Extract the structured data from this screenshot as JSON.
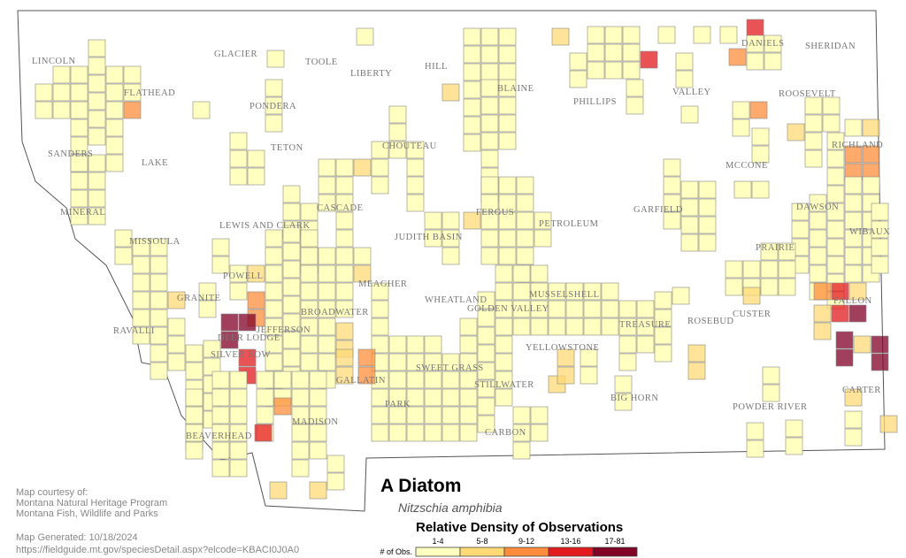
{
  "map": {
    "title": "A Diatom",
    "subtitle": "Nitzschia amphibia",
    "legend": {
      "title": "Relative Density of Observations",
      "axis_label": "# of Obs.",
      "classes": [
        {
          "label": "1-4",
          "color": "#ffffc0"
        },
        {
          "label": "5-8",
          "color": "#fed976"
        },
        {
          "label": "9-12",
          "color": "#fd8d3c"
        },
        {
          "label": "13-16",
          "color": "#e31a1c"
        },
        {
          "label": "17-81",
          "color": "#800026"
        }
      ]
    },
    "counties": [
      "LINCOLN",
      "FLATHEAD",
      "GLACIER",
      "TOOLE",
      "LIBERTY",
      "HILL",
      "BLAINE",
      "PHILLIPS",
      "VALLEY",
      "DANIELS",
      "SHERIDAN",
      "ROOSEVELT",
      "PONDERA",
      "TETON",
      "CHOUTEAU",
      "SANDERS",
      "LAKE",
      "MINERAL",
      "MISSOULA",
      "LEWIS AND CLARK",
      "CASCADE",
      "JUDITH BASIN",
      "FERGUS",
      "PETROLEUM",
      "GARFIELD",
      "MCCONE",
      "RICHLAND",
      "DAWSON",
      "WIBAUX",
      "PRAIRIE",
      "FALLON",
      "CUSTER",
      "POWELL",
      "GRANITE",
      "MEAGHER",
      "WHEATLAND",
      "GOLDEN VALLEY",
      "MUSSELSHELL",
      "TREASURE",
      "ROSEBUD",
      "BROADWATER",
      "RAVALLI",
      "DEER LODGE",
      "JEFFERSON",
      "SILVER BOW",
      "YELLOWSTONE",
      "SWEET GRASS",
      "STILLWATER",
      "BIG HORN",
      "POWDER RIVER",
      "CARTER",
      "GALLATIN",
      "PARK",
      "MADISON",
      "BEAVERHEAD",
      "CARBON"
    ],
    "credits": {
      "lines": [
        "Map courtesy of:",
        "Montana Natural Heritage Program",
        "Montana Fish, Wildlife and Parks"
      ],
      "generated": "Map Generated: 10/18/2024",
      "url": "https://fieldguide.mt.gov/speciesDetail.aspx?elcode=KBACI0J0A0"
    }
  }
}
